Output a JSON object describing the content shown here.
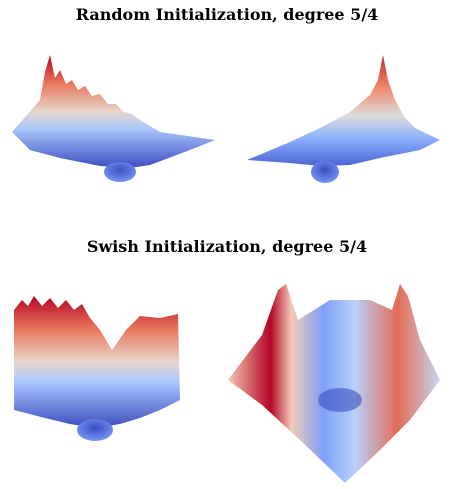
{
  "figure": {
    "sections": [
      {
        "title": "Random Initialization, degree 5/4"
      },
      {
        "title": "Swish Initialization, degree 5/4"
      }
    ]
  }
}
